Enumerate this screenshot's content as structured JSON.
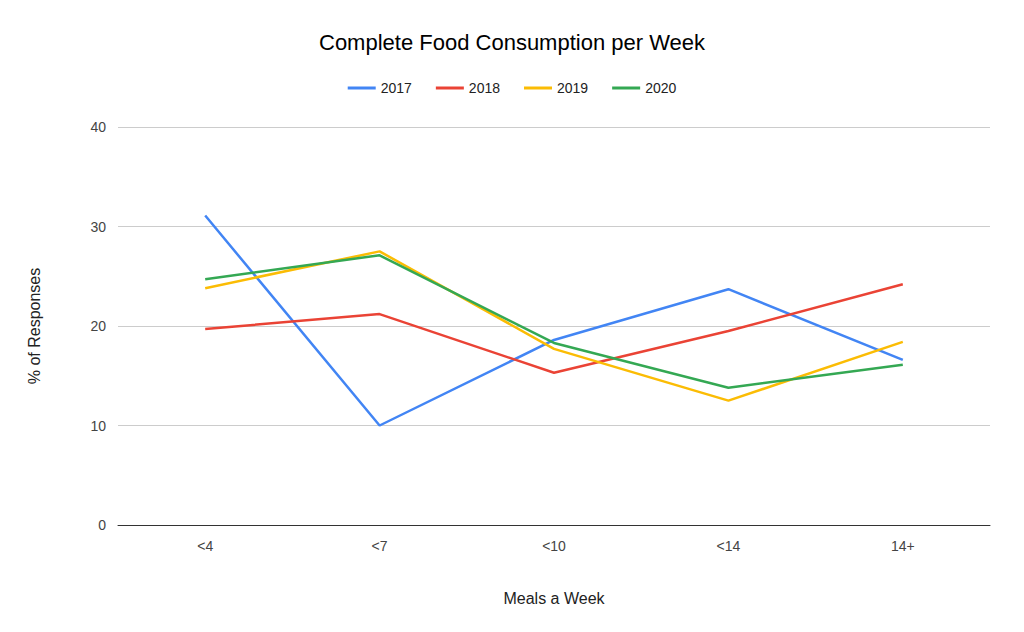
{
  "chart_data": {
    "type": "line",
    "title": "Complete Food Consumption per Week",
    "x_label": "Meals a Week",
    "y_label": "% of Responses",
    "categories": [
      "<4",
      "<7",
      "<10",
      "<14",
      "14+"
    ],
    "series": [
      {
        "name": "2017",
        "color": "#4285f4",
        "values": [
          31.1,
          10.0,
          18.6,
          23.7,
          16.6
        ]
      },
      {
        "name": "2018",
        "color": "#ea4335",
        "values": [
          19.7,
          21.2,
          15.3,
          19.5,
          24.2
        ]
      },
      {
        "name": "2019",
        "color": "#fbbc04",
        "values": [
          23.8,
          27.5,
          17.7,
          12.5,
          18.4
        ]
      },
      {
        "name": "2020",
        "color": "#34a853",
        "values": [
          24.7,
          27.1,
          18.3,
          13.8,
          16.1
        ]
      }
    ],
    "ylim": [
      0,
      40
    ],
    "yticks": [
      0,
      10,
      20,
      30,
      40
    ],
    "grid": true,
    "legend": "top"
  }
}
